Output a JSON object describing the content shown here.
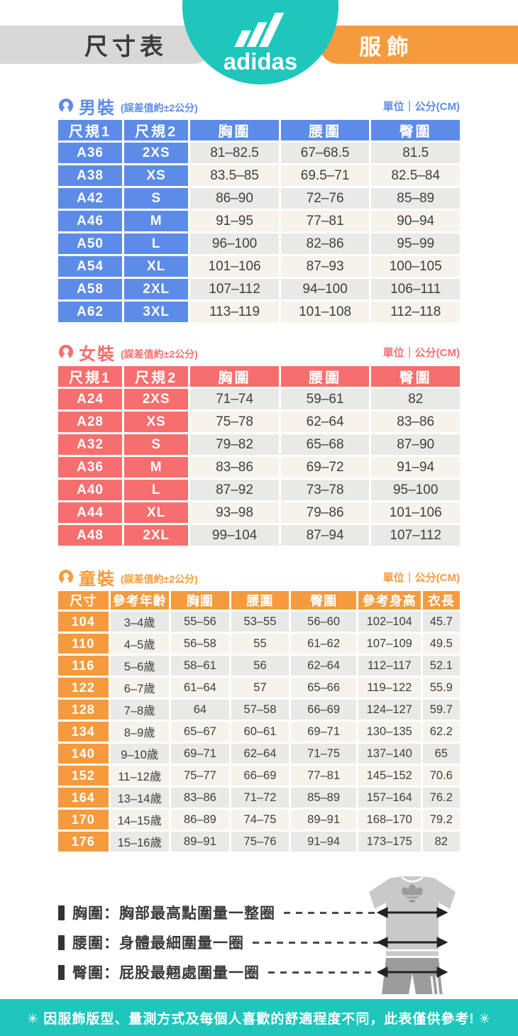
{
  "header": {
    "left_badge": "尺寸表",
    "brand": "adidas",
    "right_badge": "服飾"
  },
  "unit_label": "單位｜公分(CM)",
  "tolerance_note": "(誤差值約±2公分)",
  "sections": {
    "men": {
      "title": "男裝",
      "columns": [
        "尺規1",
        "尺規2",
        "胸圍",
        "腰圍",
        "臀圍"
      ],
      "rows": [
        [
          "A36",
          "2XS",
          "81–82.5",
          "67–68.5",
          "81.5"
        ],
        [
          "A38",
          "XS",
          "83.5–85",
          "69.5–71",
          "82.5–84"
        ],
        [
          "A42",
          "S",
          "86–90",
          "72–76",
          "85–89"
        ],
        [
          "A46",
          "M",
          "91–95",
          "77–81",
          "90–94"
        ],
        [
          "A50",
          "L",
          "96–100",
          "82–86",
          "95–99"
        ],
        [
          "A54",
          "XL",
          "101–106",
          "87–93",
          "100–105"
        ],
        [
          "A58",
          "2XL",
          "107–112",
          "94–100",
          "106–111"
        ],
        [
          "A62",
          "3XL",
          "113–119",
          "101–108",
          "112–118"
        ]
      ]
    },
    "women": {
      "title": "女裝",
      "columns": [
        "尺規1",
        "尺規2",
        "胸圍",
        "腰圍",
        "臀圍"
      ],
      "rows": [
        [
          "A24",
          "2XS",
          "71–74",
          "59–61",
          "82"
        ],
        [
          "A28",
          "XS",
          "75–78",
          "62–64",
          "83–86"
        ],
        [
          "A32",
          "S",
          "79–82",
          "65–68",
          "87–90"
        ],
        [
          "A36",
          "M",
          "83–86",
          "69–72",
          "91–94"
        ],
        [
          "A40",
          "L",
          "87–92",
          "73–78",
          "95–100"
        ],
        [
          "A44",
          "XL",
          "93–98",
          "79–86",
          "101–106"
        ],
        [
          "A48",
          "2XL",
          "99–104",
          "87–94",
          "107–112"
        ]
      ]
    },
    "kids": {
      "title": "童裝",
      "columns": [
        "尺寸",
        "參考年齡",
        "胸圍",
        "腰圍",
        "臀圍",
        "參考身高",
        "衣長"
      ],
      "rows": [
        [
          "104",
          "3–4歲",
          "55–56",
          "53–55",
          "56–60",
          "102–104",
          "45.7"
        ],
        [
          "110",
          "4–5歲",
          "56–58",
          "55",
          "61–62",
          "107–109",
          "49.5"
        ],
        [
          "116",
          "5–6歲",
          "58–61",
          "56",
          "62–64",
          "112–117",
          "52.1"
        ],
        [
          "122",
          "6–7歲",
          "61–64",
          "57",
          "65–66",
          "119–122",
          "55.9"
        ],
        [
          "128",
          "7–8歲",
          "64",
          "57–58",
          "66–69",
          "124–127",
          "59.7"
        ],
        [
          "134",
          "8–9歲",
          "65–67",
          "60–61",
          "69–71",
          "130–135",
          "62.2"
        ],
        [
          "140",
          "9–10歲",
          "69–71",
          "62–64",
          "71–75",
          "137–140",
          "65"
        ],
        [
          "152",
          "11–12歲",
          "75–77",
          "66–69",
          "77–81",
          "145–152",
          "70.6"
        ],
        [
          "164",
          "13–14歲",
          "83–86",
          "71–72",
          "85–89",
          "157–164",
          "76.2"
        ],
        [
          "170",
          "14–15歲",
          "86–89",
          "74–75",
          "89–91",
          "168–170",
          "79.2"
        ],
        [
          "176",
          "15–16歲",
          "89–91",
          "75–76",
          "91–94",
          "173–175",
          "82"
        ]
      ]
    }
  },
  "legend": [
    {
      "text": "胸圍：胸部最高點圍量一整圈"
    },
    {
      "text": "腰圍：身體最細圍量一圈"
    },
    {
      "text": "臀圍：屁股最翹處圍量一圈"
    }
  ],
  "footer": "✳ 因服飾版型、量測方式及每個人喜歡的舒適程度不同，此表僅供參考! ✳",
  "colors": {
    "teal": "#1ec6bc",
    "men_blue": "#5c8ce8",
    "women_red": "#f76e6e",
    "kids_orange": "#f59b3d",
    "row_gray": "#e9e9e7",
    "row_cream": "#f6f2ec"
  }
}
